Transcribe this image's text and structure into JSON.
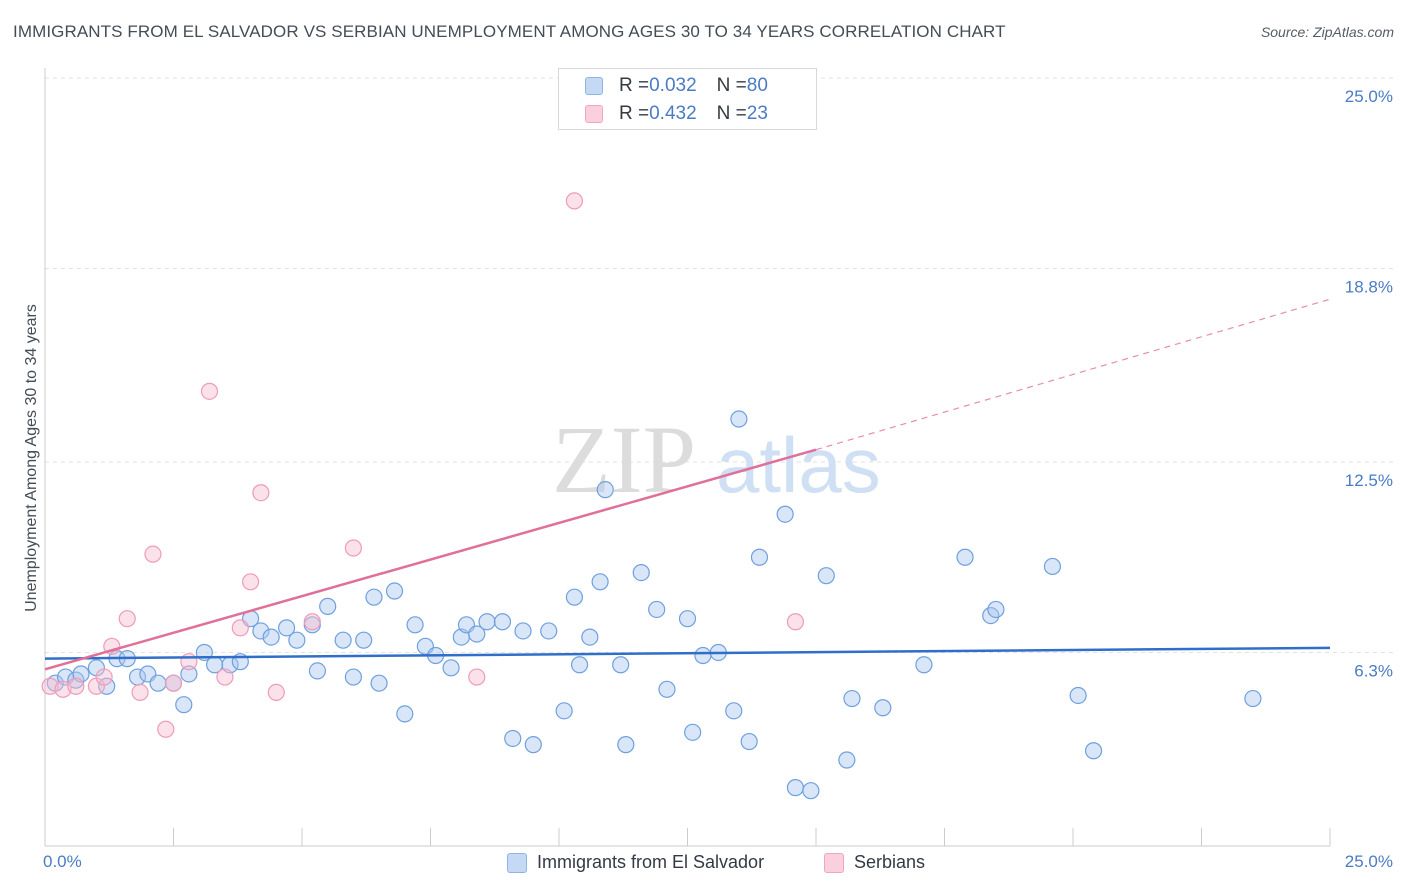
{
  "title": "IMMIGRANTS FROM EL SALVADOR VS SERBIAN UNEMPLOYMENT AMONG AGES 30 TO 34 YEARS CORRELATION CHART",
  "source": "Source: ZipAtlas.com",
  "watermark": {
    "zip": "ZIP",
    "atlas": "atlas"
  },
  "legend": {
    "rows": [
      {
        "r_label": "R = ",
        "r_value": "0.032",
        "n_label": "N = ",
        "n_value": "80",
        "color": "#aac8f0"
      },
      {
        "r_label": "R = ",
        "r_value": "0.432",
        "n_label": "N = ",
        "n_value": "23",
        "color": "#f7bcd0"
      }
    ]
  },
  "bottom_legend": {
    "items": [
      {
        "label": "Immigrants from El Salvador",
        "color": "#aac8f0"
      },
      {
        "label": "Serbians",
        "color": "#f7bcd0"
      }
    ]
  },
  "chart_data": {
    "type": "scatter",
    "ylabel": "Unemployment Among Ages 30 to 34 years",
    "xlim": [
      0,
      25
    ],
    "ylim": [
      0,
      25
    ],
    "x_tick_labels": {
      "min": "0.0%",
      "max": "25.0%"
    },
    "y_ticks": [
      {
        "value": 6.3,
        "label": "6.3%"
      },
      {
        "value": 12.5,
        "label": "12.5%"
      },
      {
        "value": 18.8,
        "label": "18.8%"
      },
      {
        "value": 25.0,
        "label": "25.0%"
      }
    ],
    "grid": true,
    "legend_position": "top-center",
    "series": [
      {
        "name": "Immigrants from El Salvador",
        "color": "#6fa0de",
        "fill": "#aac8f0",
        "trend": {
          "x0": 0,
          "y0": 6.1,
          "x1": 25,
          "y1": 6.45,
          "color": "#2f6fca",
          "dashed_from": null
        },
        "points": [
          [
            0.2,
            5.3
          ],
          [
            0.4,
            5.5
          ],
          [
            0.6,
            5.4
          ],
          [
            0.7,
            5.6
          ],
          [
            1.0,
            5.8
          ],
          [
            1.2,
            5.2
          ],
          [
            1.4,
            6.1
          ],
          [
            1.6,
            6.1
          ],
          [
            1.8,
            5.5
          ],
          [
            2.0,
            5.6
          ],
          [
            2.2,
            5.3
          ],
          [
            2.5,
            5.3
          ],
          [
            2.7,
            4.6
          ],
          [
            2.8,
            5.6
          ],
          [
            3.1,
            6.3
          ],
          [
            3.3,
            5.9
          ],
          [
            3.6,
            5.9
          ],
          [
            3.8,
            6.0
          ],
          [
            4.0,
            7.4
          ],
          [
            4.2,
            7.0
          ],
          [
            4.4,
            6.8
          ],
          [
            4.7,
            7.1
          ],
          [
            4.9,
            6.7
          ],
          [
            5.2,
            7.2
          ],
          [
            5.3,
            5.7
          ],
          [
            5.5,
            7.8
          ],
          [
            5.8,
            6.7
          ],
          [
            6.0,
            5.5
          ],
          [
            6.2,
            6.7
          ],
          [
            6.4,
            8.1
          ],
          [
            6.5,
            5.3
          ],
          [
            6.8,
            8.3
          ],
          [
            7.0,
            4.3
          ],
          [
            7.2,
            7.2
          ],
          [
            7.4,
            6.5
          ],
          [
            7.6,
            6.2
          ],
          [
            7.9,
            5.8
          ],
          [
            8.1,
            6.8
          ],
          [
            8.2,
            7.2
          ],
          [
            8.4,
            6.9
          ],
          [
            8.6,
            7.3
          ],
          [
            8.9,
            7.3
          ],
          [
            9.1,
            3.5
          ],
          [
            9.3,
            7.0
          ],
          [
            9.5,
            3.3
          ],
          [
            9.8,
            7.0
          ],
          [
            10.1,
            4.4
          ],
          [
            10.3,
            8.1
          ],
          [
            10.4,
            5.9
          ],
          [
            10.6,
            6.8
          ],
          [
            10.8,
            8.6
          ],
          [
            10.9,
            11.6
          ],
          [
            11.2,
            5.9
          ],
          [
            11.3,
            3.3
          ],
          [
            11.6,
            8.9
          ],
          [
            11.9,
            7.7
          ],
          [
            12.1,
            5.1
          ],
          [
            12.5,
            7.4
          ],
          [
            12.6,
            3.7
          ],
          [
            12.8,
            6.2
          ],
          [
            13.1,
            6.3
          ],
          [
            13.4,
            4.4
          ],
          [
            13.5,
            13.9
          ],
          [
            13.7,
            3.4
          ],
          [
            13.9,
            9.4
          ],
          [
            14.4,
            10.8
          ],
          [
            14.6,
            1.9
          ],
          [
            14.9,
            1.8
          ],
          [
            15.2,
            8.8
          ],
          [
            15.6,
            2.8
          ],
          [
            15.7,
            4.8
          ],
          [
            16.3,
            4.5
          ],
          [
            17.1,
            5.9
          ],
          [
            17.9,
            9.4
          ],
          [
            18.4,
            7.5
          ],
          [
            18.5,
            7.7
          ],
          [
            19.6,
            9.1
          ],
          [
            20.1,
            4.9
          ],
          [
            20.4,
            3.1
          ],
          [
            23.5,
            4.8
          ]
        ]
      },
      {
        "name": "Serbians",
        "color": "#ee9bb8",
        "fill": "#f7bcd0",
        "trend": {
          "x0": 0,
          "y0": 5.75,
          "x1": 15,
          "y1": 12.9,
          "x2": 25,
          "y2": 17.8,
          "color": "#e0709a"
        },
        "points": [
          [
            0.1,
            5.2
          ],
          [
            0.35,
            5.1
          ],
          [
            0.6,
            5.2
          ],
          [
            1.0,
            5.2
          ],
          [
            1.15,
            5.5
          ],
          [
            1.3,
            6.5
          ],
          [
            1.6,
            7.4
          ],
          [
            1.85,
            5.0
          ],
          [
            2.1,
            9.5
          ],
          [
            2.35,
            3.8
          ],
          [
            2.5,
            5.3
          ],
          [
            2.8,
            6.0
          ],
          [
            3.2,
            14.8
          ],
          [
            3.5,
            5.5
          ],
          [
            3.8,
            7.1
          ],
          [
            4.0,
            8.6
          ],
          [
            4.2,
            11.5
          ],
          [
            4.5,
            5.0
          ],
          [
            5.2,
            7.3
          ],
          [
            6.0,
            9.7
          ],
          [
            8.4,
            5.5
          ],
          [
            10.3,
            21.0
          ],
          [
            14.6,
            7.3
          ]
        ]
      }
    ]
  }
}
